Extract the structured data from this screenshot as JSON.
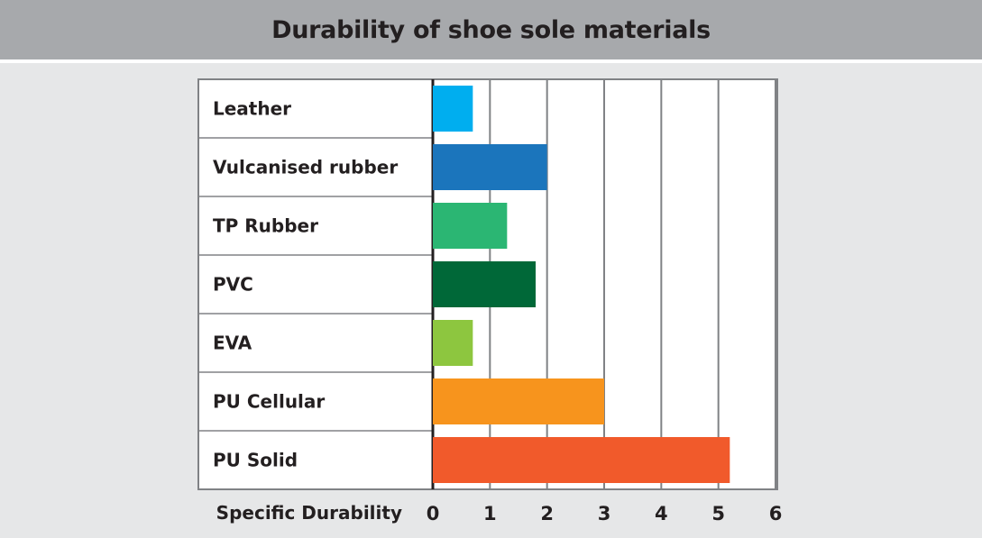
{
  "chart_data": {
    "type": "bar",
    "orientation": "horizontal",
    "title": "Durability of shoe sole materials",
    "xlabel": "Specific Durability",
    "ylabel": "",
    "categories": [
      "Leather",
      "Vulcanised rubber",
      "TP Rubber",
      "PVC",
      "EVA",
      "PU Cellular",
      "PU Solid"
    ],
    "values": [
      0.7,
      2.0,
      1.3,
      1.8,
      0.7,
      3.0,
      5.2
    ],
    "colors": [
      "#00aeef",
      "#1b75bc",
      "#2bb673",
      "#006838",
      "#8dc63f",
      "#f7941d",
      "#f15a2b"
    ],
    "xlim": [
      0,
      6
    ],
    "xticks": [
      "0",
      "1",
      "2",
      "3",
      "4",
      "5",
      "6"
    ],
    "grid": true,
    "legend": "none"
  }
}
